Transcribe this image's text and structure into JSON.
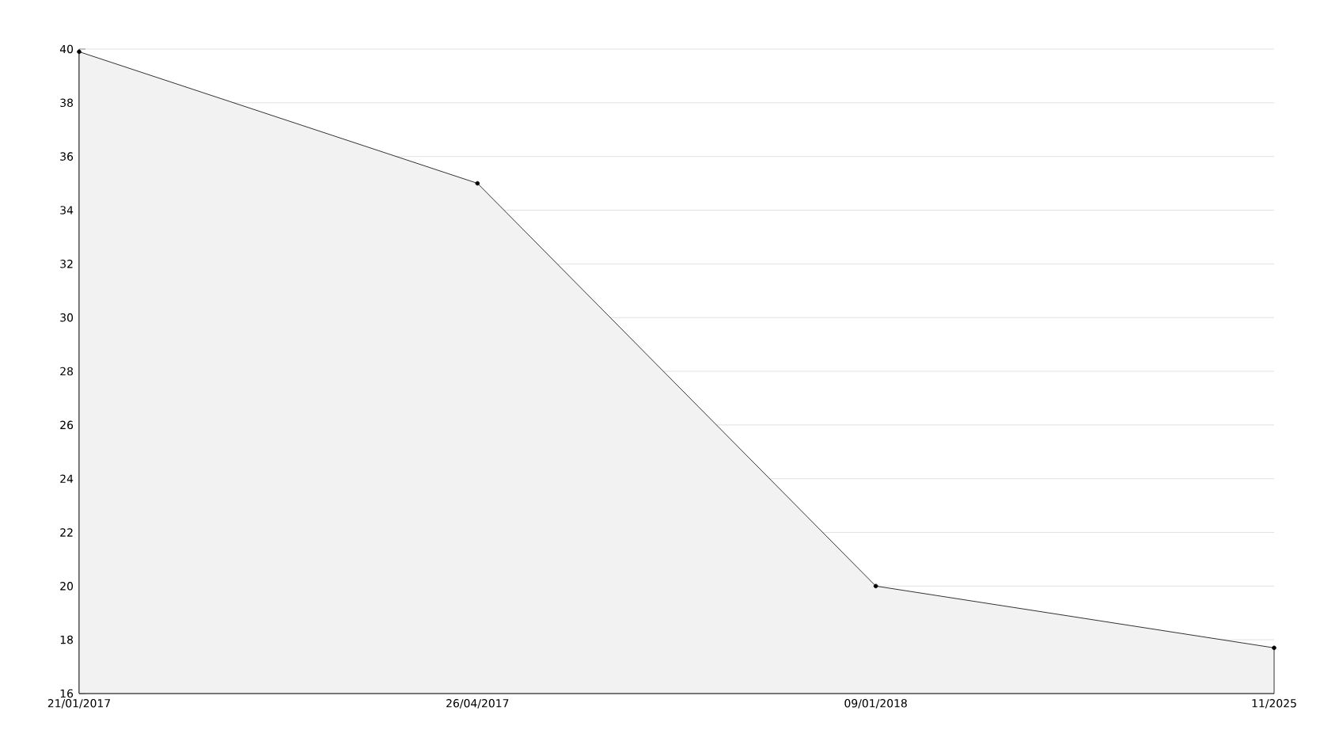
{
  "chart_data": {
    "type": "area",
    "categories": [
      "21/01/2017",
      "26/04/2017",
      "09/01/2018",
      "11/2025"
    ],
    "values": [
      39.9,
      35.0,
      20.0,
      17.7
    ],
    "color": "#f2f2f2",
    "ylim": [
      16,
      40
    ],
    "yticks": [
      16,
      18,
      20,
      22,
      24,
      26,
      28,
      30,
      32,
      34,
      36,
      38,
      40
    ],
    "grid": "y",
    "marker": "circle"
  }
}
